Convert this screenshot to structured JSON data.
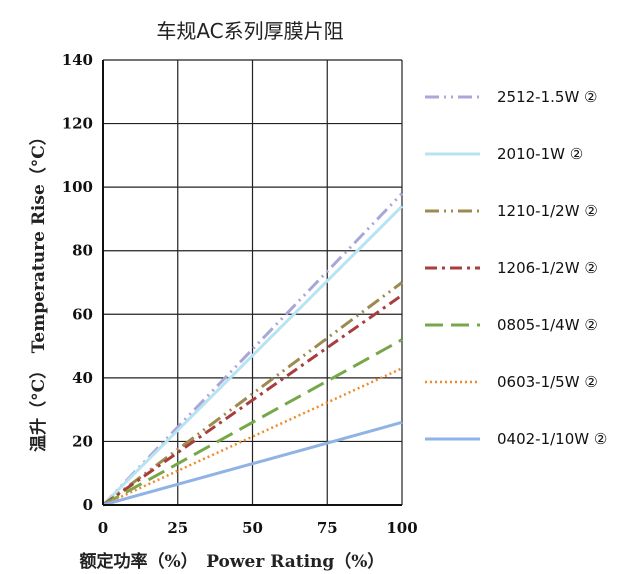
{
  "chart_data": {
    "type": "line",
    "title": "车规AC系列厚膜片阻",
    "xlabel": "额定功率（%）　Power Rating（%）",
    "ylabel": "温升（°C）　Temperature Rise（°C）",
    "xlim": [
      0,
      100
    ],
    "ylim": [
      0,
      140
    ],
    "x_ticks": [
      "0",
      "25",
      "50",
      "75",
      "100"
    ],
    "y_ticks": [
      "0",
      "20",
      "40",
      "60",
      "80",
      "100",
      "120",
      "140"
    ],
    "grid": true,
    "legend_position": "right",
    "x": [
      0,
      100
    ],
    "series": [
      {
        "name": "2512-1.5W ②",
        "values": [
          0,
          98
        ],
        "color": "#a9a6d8",
        "style": "dash-dot-dot"
      },
      {
        "name": "2010-1W ②",
        "values": [
          0,
          94
        ],
        "color": "#b8e3f2",
        "style": "solid"
      },
      {
        "name": "1210-1/2W ②",
        "values": [
          0,
          70
        ],
        "color": "#9c8a4e",
        "style": "dash-dot-dot"
      },
      {
        "name": "1206-1/2W ②",
        "values": [
          0,
          66
        ],
        "color": "#a83e3e",
        "style": "dash-dot"
      },
      {
        "name": "0805-1/4W ②",
        "values": [
          0,
          52
        ],
        "color": "#76a84a",
        "style": "long-dash"
      },
      {
        "name": "0603-1/5W ②",
        "values": [
          0,
          43
        ],
        "color": "#f08a2c",
        "style": "dotted"
      },
      {
        "name": "0402-1/10W ②",
        "values": [
          0,
          26
        ],
        "color": "#8fb3e4",
        "style": "solid"
      }
    ]
  }
}
